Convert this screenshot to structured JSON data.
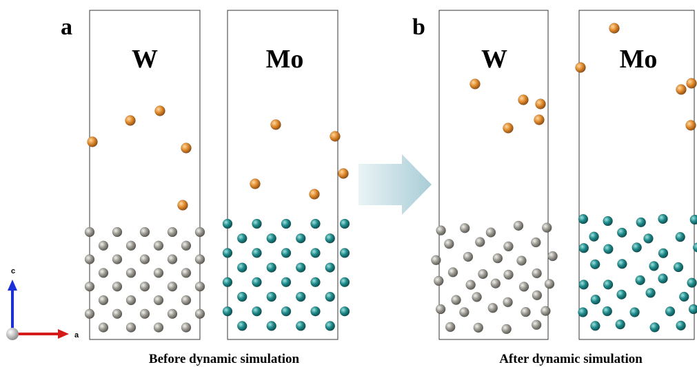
{
  "panel_a": {
    "label": "a",
    "left_title": "W",
    "right_title": "Mo",
    "caption": "Before dynamic simulation"
  },
  "panel_b": {
    "label": "b",
    "left_title": "W",
    "right_title": "Mo",
    "caption": "After dynamic simulation"
  },
  "axes": {
    "vertical": "c",
    "horizontal": "a"
  }
}
